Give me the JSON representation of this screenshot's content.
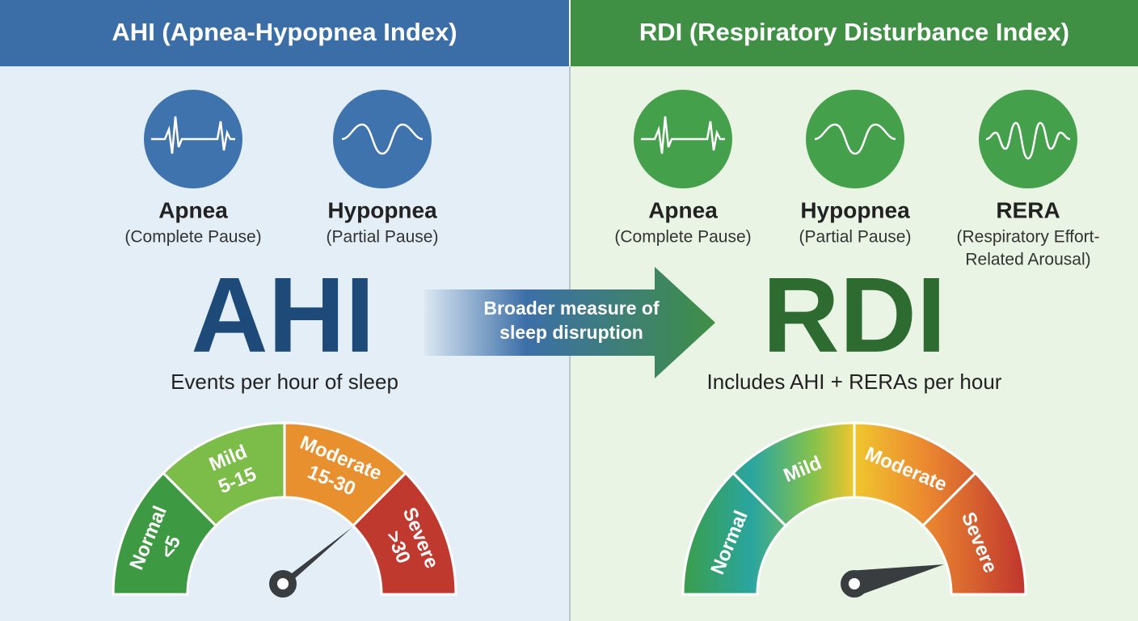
{
  "left": {
    "header": "AHI (Apnea-Hypopnea Index)",
    "events": [
      {
        "label": "Apnea",
        "sub_lines": [
          "(Complete Pause)"
        ]
      },
      {
        "label": "Hypopnea",
        "sub_lines": [
          "(Partial Pause)"
        ]
      }
    ],
    "big": "AHI",
    "caption": "Events per hour of sleep",
    "gauge": [
      {
        "lines": [
          "Normal",
          "<5"
        ]
      },
      {
        "lines": [
          "Mild",
          "5-15"
        ]
      },
      {
        "lines": [
          "Moderate",
          "15-30"
        ]
      },
      {
        "lines": [
          "Severe",
          ">30"
        ]
      }
    ]
  },
  "arrow": {
    "lines": [
      "Broader measure of",
      "sleep disruption"
    ]
  },
  "right": {
    "header": "RDI (Respiratory Disturbance Index)",
    "events": [
      {
        "label": "Apnea",
        "sub_lines": [
          "(Complete Pause)"
        ]
      },
      {
        "label": "Hypopnea",
        "sub_lines": [
          "(Partial Pause)"
        ]
      },
      {
        "label": "RERA",
        "sub_lines": [
          "(Respiratory Effort-",
          "Related Arousal)"
        ]
      }
    ],
    "big": "RDI",
    "caption": "Includes AHI + RERAs per hour",
    "gauge": [
      {
        "lines": [
          "Normal"
        ]
      },
      {
        "lines": [
          "Mild"
        ]
      },
      {
        "lines": [
          "Moderate"
        ]
      },
      {
        "lines": [
          "Severe"
        ]
      }
    ]
  }
}
